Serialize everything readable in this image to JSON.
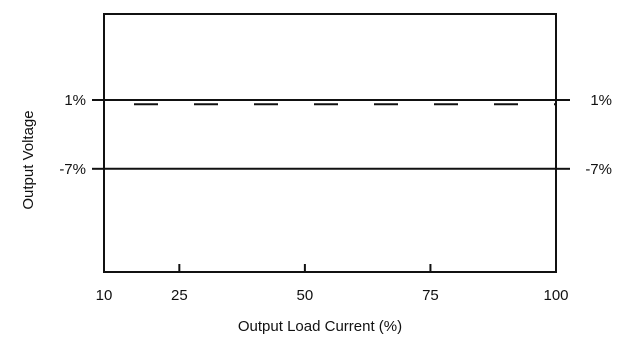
{
  "chart_data": {
    "type": "line",
    "xlabel": "Output Load Current (%)",
    "ylabel": "Output Voltage",
    "x_ticks": [
      10,
      25,
      50,
      75,
      100
    ],
    "x_tick_labels": [
      "10",
      "25",
      "50",
      "75",
      "100"
    ],
    "xlim": [
      10,
      100
    ],
    "y_tick_values": [
      1,
      -7
    ],
    "y_tick_labels": [
      "1%",
      "-7%"
    ],
    "y_right_tick_labels": [
      "1%",
      "-7%"
    ],
    "ylim": [
      -19,
      11
    ],
    "grid": false,
    "series": [
      {
        "style": "solid",
        "x": [
          10,
          100
        ],
        "y": [
          1,
          1
        ]
      },
      {
        "style": "dashed",
        "x": [
          10,
          100
        ],
        "y": [
          0.5,
          0.5
        ]
      },
      {
        "style": "solid",
        "x": [
          10,
          100
        ],
        "y": [
          -7,
          -7
        ]
      }
    ]
  }
}
